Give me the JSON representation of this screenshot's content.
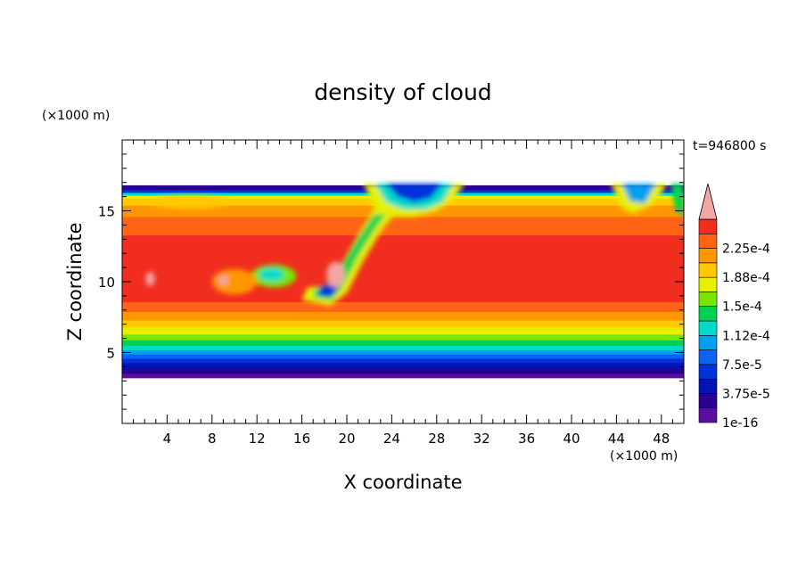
{
  "chart_data": {
    "type": "heatmap",
    "title": "density of cloud",
    "xlabel": "X coordinate",
    "ylabel": "Z coordinate",
    "x_unit": "(×1000 m)",
    "y_unit": "(×1000 m)",
    "time_label": "t=946800 s",
    "xlim": [
      0,
      50
    ],
    "ylim": [
      0,
      20
    ],
    "x_ticks": [
      "4",
      "8",
      "12",
      "16",
      "20",
      "24",
      "28",
      "32",
      "36",
      "40",
      "44",
      "48"
    ],
    "x_tick_values": [
      4,
      8,
      12,
      16,
      20,
      24,
      28,
      32,
      36,
      40,
      44,
      48
    ],
    "y_ticks": [
      "5",
      "10",
      "15"
    ],
    "y_tick_values": [
      5,
      10,
      15
    ],
    "cloud_base_z": 3.5,
    "cloud_top_z": 16.8,
    "colorbar": {
      "levels": [
        {
          "value": "1e-16",
          "color": "#5a0fa0"
        },
        {
          "value": "",
          "color": "#2a0090"
        },
        {
          "value": "3.75e-5",
          "color": "#0014b4"
        },
        {
          "value": "",
          "color": "#0032dc"
        },
        {
          "value": "7.5e-5",
          "color": "#0a64f0"
        },
        {
          "value": "",
          "color": "#00a0f0"
        },
        {
          "value": "1.12e-4",
          "color": "#00dcc8"
        },
        {
          "value": "",
          "color": "#00d250"
        },
        {
          "value": "1.5e-4",
          "color": "#78e600"
        },
        {
          "value": "",
          "color": "#e6f000"
        },
        {
          "value": "1.88e-4",
          "color": "#ffc800"
        },
        {
          "value": "",
          "color": "#ff9600"
        },
        {
          "value": "2.25e-4",
          "color": "#ff6414"
        },
        {
          "value": "",
          "color": "#f02d1e"
        }
      ],
      "extend_color": "#f4a6a6"
    }
  }
}
